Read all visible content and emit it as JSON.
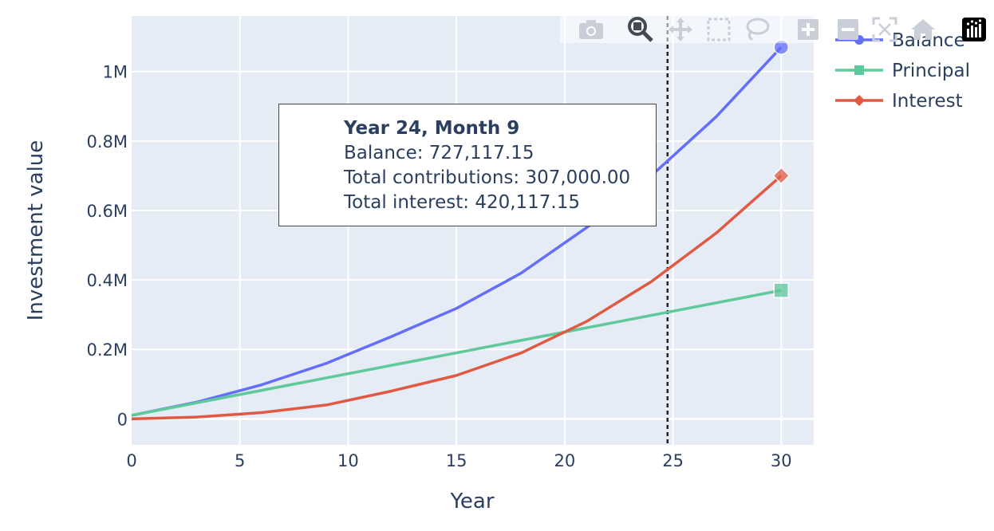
{
  "chart_data": {
    "type": "line",
    "xlabel": "Year",
    "ylabel": "Investment value",
    "xlim": [
      0,
      31.5
    ],
    "ylim": [
      -75000,
      1160000
    ],
    "xticks": [
      0,
      5,
      10,
      15,
      20,
      25,
      30
    ],
    "xtick_labels": [
      "0",
      "5",
      "10",
      "15",
      "20",
      "25",
      "30"
    ],
    "yticks": [
      0,
      200000,
      400000,
      600000,
      800000,
      1000000
    ],
    "ytick_labels": [
      "0",
      "0.2M",
      "0.4M",
      "0.6M",
      "0.8M",
      "1M"
    ],
    "grid": true,
    "legend_position": "top-right",
    "hover_line_x": 24.75,
    "series": [
      {
        "name": "Balance",
        "color": "#636efa",
        "marker": "circle",
        "x": [
          0,
          3,
          6,
          9,
          12,
          15,
          18,
          21,
          24,
          27,
          30
        ],
        "y": [
          10000,
          48000,
          98000,
          160000,
          237000,
          318000,
          420000,
          550000,
          700000,
          870000,
          1070000
        ]
      },
      {
        "name": "Principal",
        "color": "#5ec99a",
        "marker": "square",
        "x": [
          0,
          30
        ],
        "y": [
          10000,
          370000
        ]
      },
      {
        "name": "Interest",
        "color": "#e05a43",
        "marker": "diamond",
        "x": [
          0,
          3,
          6,
          9,
          12,
          15,
          18,
          21,
          24,
          27,
          30
        ],
        "y": [
          0,
          5000,
          18000,
          40000,
          80000,
          125000,
          190000,
          280000,
          395000,
          535000,
          700000
        ]
      }
    ]
  },
  "tooltip": {
    "title": "Year 24, Month 9",
    "balance": "Balance: 727,117.15",
    "contributions": "Total contributions: 307,000.00",
    "interest": "Total interest: 420,117.15"
  },
  "modebar": {
    "buttons": [
      "camera-icon",
      "zoom-icon",
      "pan-icon",
      "box-select-icon",
      "lasso-icon",
      "zoom-in-icon",
      "zoom-out-icon",
      "autoscale-icon",
      "reset-axes-icon",
      "plotly-logo-icon"
    ]
  }
}
